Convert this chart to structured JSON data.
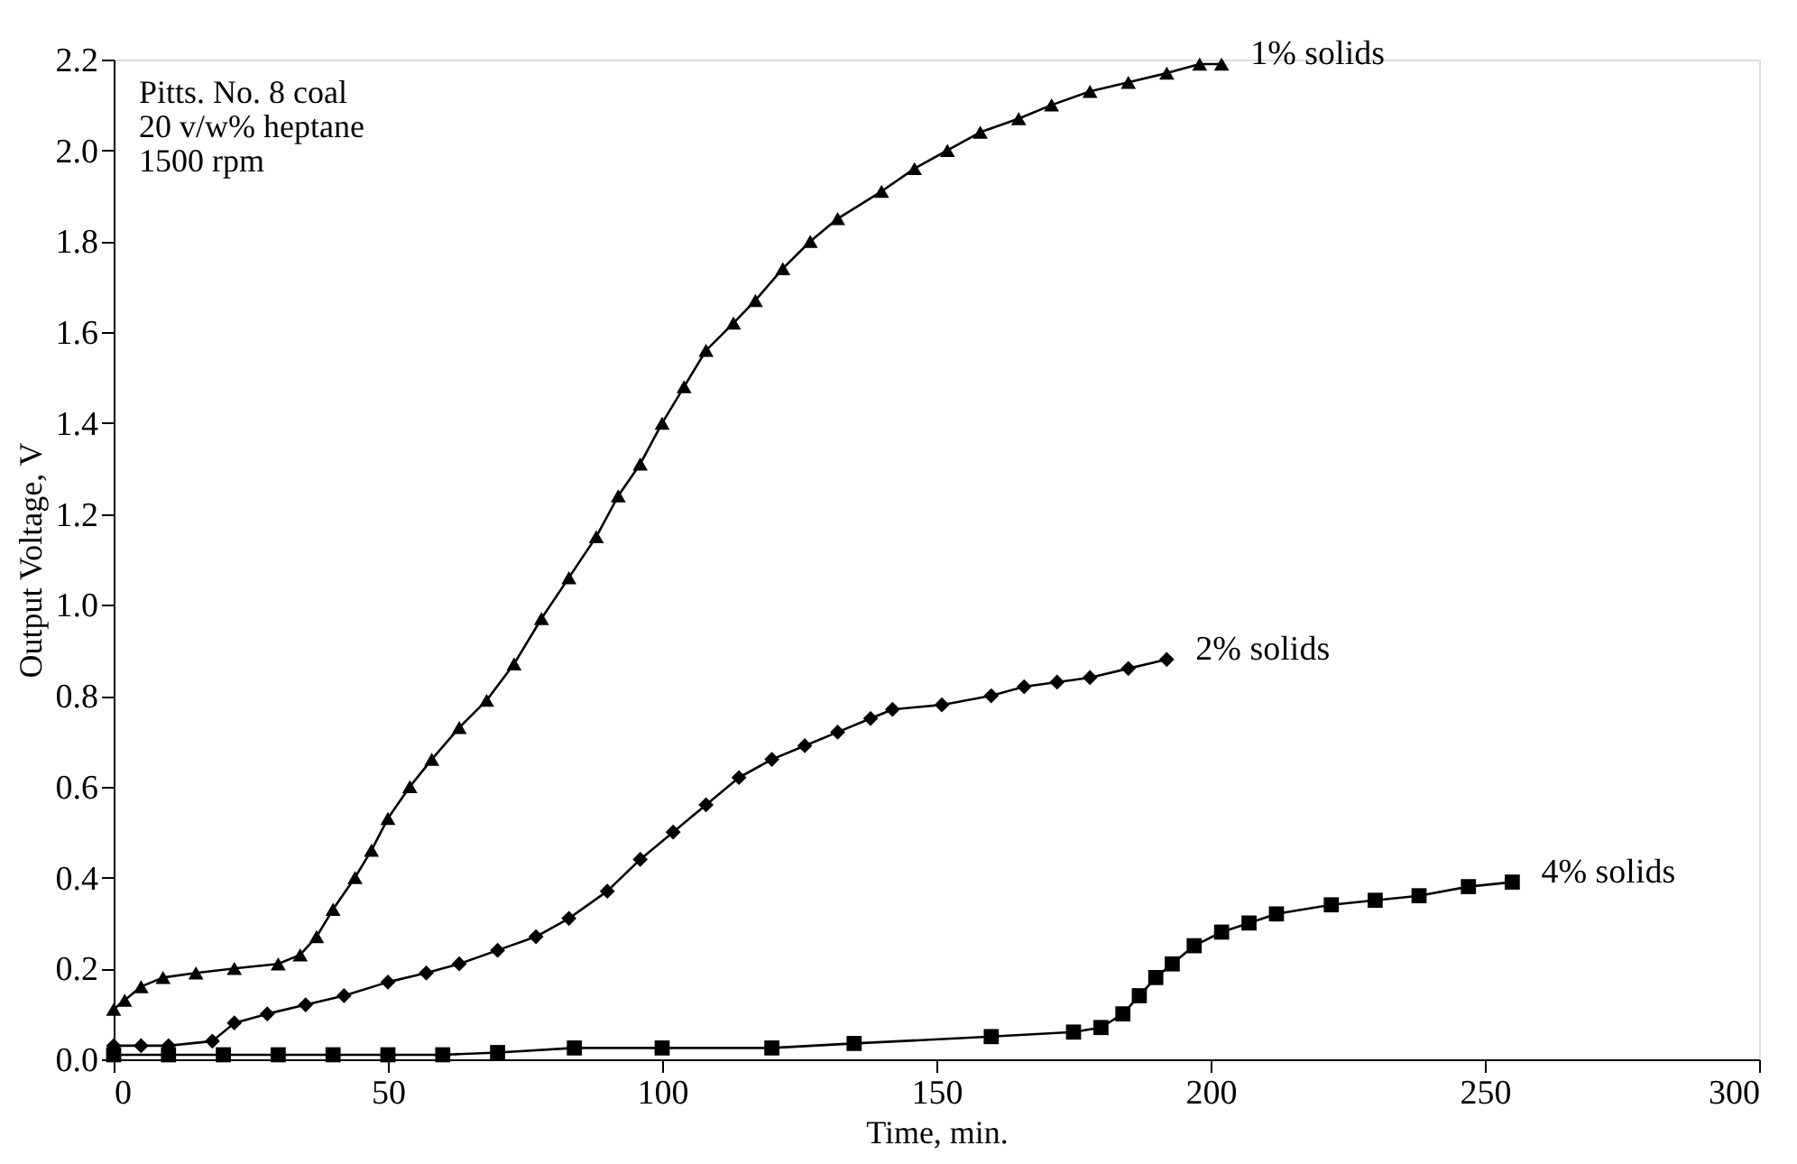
{
  "chart_data": {
    "type": "line",
    "xlabel": "Time, min.",
    "ylabel": "Output Voltage, V",
    "annotations": [
      "Pitts. No. 8 coal\n20 v/w% heptane\n1500 rpm"
    ],
    "xlim": [
      0,
      300
    ],
    "xticks": [
      0,
      50,
      100,
      150,
      200,
      250,
      300
    ],
    "ylim": [
      0,
      2.2
    ],
    "yticks": [
      {
        "value": 0,
        "label": "0.0"
      },
      0.2,
      0.4,
      0.6,
      0.8,
      {
        "value": 1,
        "label": "1.0"
      },
      1.2,
      1.4,
      1.6,
      1.8,
      {
        "value": 2,
        "label": "2.0"
      },
      2.2
    ],
    "grid": false,
    "legend": false,
    "line_style": "solid",
    "series": [
      {
        "name": "1% solids",
        "color": "#000000",
        "marker": "triangle",
        "x": [
          0,
          2,
          5,
          9,
          15,
          22,
          30,
          34,
          37,
          40,
          44,
          47,
          50,
          54,
          58,
          63,
          68,
          73,
          78,
          83,
          88,
          92,
          96,
          100,
          104,
          108,
          113,
          117,
          122,
          127,
          132,
          140,
          146,
          152,
          158,
          165,
          171,
          178,
          185,
          192,
          198,
          202
        ],
        "values": [
          0.11,
          0.13,
          0.16,
          0.18,
          0.19,
          0.2,
          0.21,
          0.23,
          0.27,
          0.33,
          0.4,
          0.46,
          0.53,
          0.6,
          0.66,
          0.73,
          0.79,
          0.87,
          0.97,
          1.06,
          1.15,
          1.24,
          1.31,
          1.4,
          1.48,
          1.56,
          1.62,
          1.67,
          1.74,
          1.8,
          1.85,
          1.91,
          1.96,
          2.0,
          2.04,
          2.07,
          2.1,
          2.13,
          2.15,
          2.17,
          2.19,
          2.19
        ]
      },
      {
        "name": "2% solids",
        "color": "#000000",
        "marker": "diamond",
        "x": [
          0,
          5,
          10,
          18,
          22,
          28,
          35,
          42,
          50,
          57,
          63,
          70,
          77,
          83,
          90,
          96,
          102,
          108,
          114,
          120,
          126,
          132,
          138,
          142,
          151,
          160,
          166,
          172,
          178,
          185,
          192
        ],
        "values": [
          0.03,
          0.03,
          0.03,
          0.04,
          0.08,
          0.1,
          0.12,
          0.14,
          0.17,
          0.19,
          0.21,
          0.24,
          0.27,
          0.31,
          0.37,
          0.44,
          0.5,
          0.56,
          0.62,
          0.66,
          0.69,
          0.72,
          0.75,
          0.77,
          0.78,
          0.8,
          0.82,
          0.83,
          0.84,
          0.86,
          0.88
        ]
      },
      {
        "name": "4% solids",
        "color": "#000000",
        "marker": "square",
        "x": [
          0,
          10,
          20,
          30,
          40,
          50,
          60,
          70,
          84,
          100,
          120,
          135,
          160,
          175,
          180,
          184,
          187,
          190,
          193,
          197,
          202,
          207,
          212,
          222,
          230,
          238,
          247,
          255
        ],
        "values": [
          0.01,
          0.01,
          0.01,
          0.01,
          0.01,
          0.01,
          0.01,
          0.015,
          0.025,
          0.025,
          0.025,
          0.035,
          0.05,
          0.06,
          0.07,
          0.1,
          0.14,
          0.18,
          0.21,
          0.25,
          0.28,
          0.3,
          0.32,
          0.34,
          0.35,
          0.36,
          0.38,
          0.39
        ]
      }
    ]
  }
}
